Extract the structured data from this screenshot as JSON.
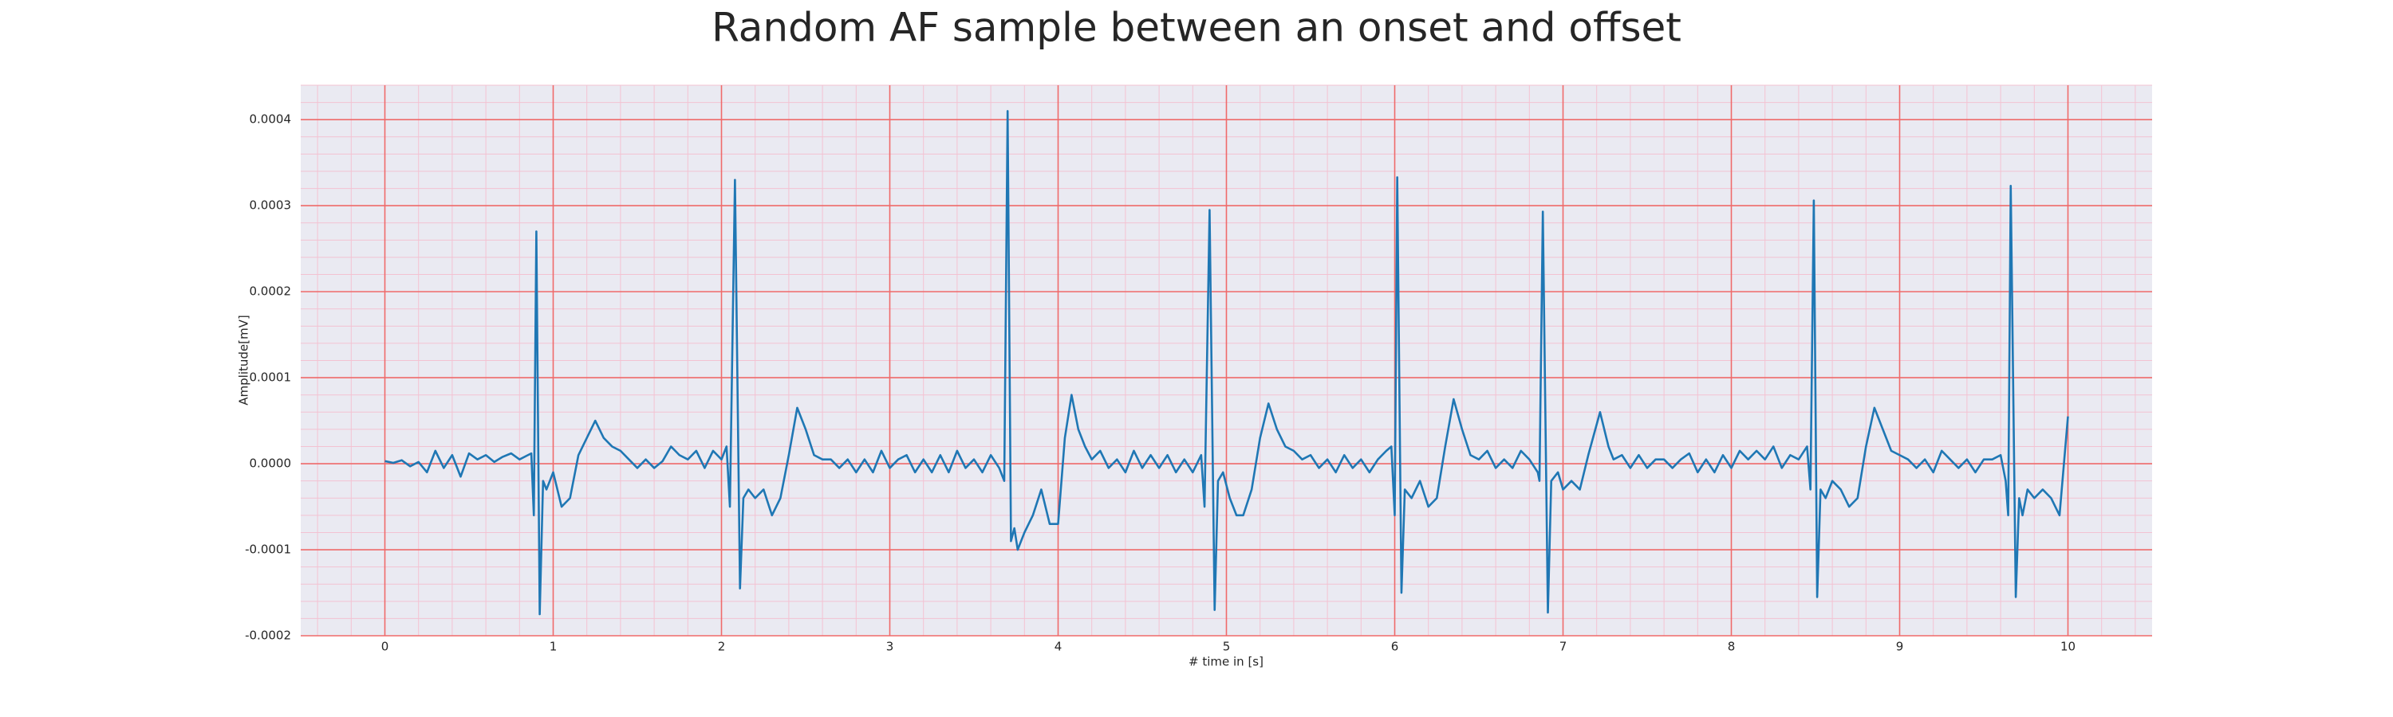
{
  "chart_data": {
    "type": "line",
    "title": "Random AF sample between an onset and offset",
    "xlabel": "# time in [s]",
    "ylabel": "Amplitude[mV]",
    "xlim": [
      -0.5,
      10.5
    ],
    "ylim": [
      -0.0002,
      0.00044
    ],
    "xticks": [
      0,
      1,
      2,
      3,
      4,
      5,
      6,
      7,
      8,
      9,
      10
    ],
    "yticks": [
      {
        "value": -0.0002,
        "label": "-0.0002"
      },
      {
        "value": -0.0001,
        "label": "-0.0001"
      },
      {
        "value": 0,
        "label": "0.0000"
      },
      {
        "value": 0.0001,
        "label": "0.0001"
      },
      {
        "value": 0.0002,
        "label": "0.0002"
      },
      {
        "value": 0.0003,
        "label": "0.0003"
      },
      {
        "value": 0.0004,
        "label": "0.0004"
      }
    ],
    "grid": true,
    "grid_color": "#ef6a6a",
    "minor_grid": true,
    "minor_divisions": 5,
    "minor_grid_color": "#f3c2d2",
    "background": "#eaeaf2",
    "series": [
      {
        "color": "#1f77b4",
        "x": [
          0,
          0.05,
          0.1,
          0.15,
          0.2,
          0.25,
          0.3,
          0.35,
          0.4,
          0.45,
          0.5,
          0.55,
          0.6,
          0.65,
          0.7,
          0.75,
          0.8,
          0.85,
          0.87,
          0.885,
          0.9,
          0.92,
          0.94,
          0.96,
          1.0,
          1.05,
          1.1,
          1.15,
          1.2,
          1.25,
          1.3,
          1.35,
          1.4,
          1.45,
          1.5,
          1.55,
          1.6,
          1.65,
          1.7,
          1.75,
          1.8,
          1.85,
          1.9,
          1.95,
          2.0,
          2.03,
          2.05,
          2.08,
          2.11,
          2.13,
          2.16,
          2.2,
          2.25,
          2.3,
          2.35,
          2.4,
          2.45,
          2.5,
          2.55,
          2.6,
          2.65,
          2.7,
          2.75,
          2.8,
          2.85,
          2.9,
          2.95,
          3.0,
          3.05,
          3.1,
          3.15,
          3.2,
          3.25,
          3.3,
          3.35,
          3.4,
          3.45,
          3.5,
          3.55,
          3.6,
          3.65,
          3.68,
          3.7,
          3.72,
          3.74,
          3.76,
          3.8,
          3.85,
          3.9,
          3.95,
          4.0,
          4.04,
          4.08,
          4.12,
          4.16,
          4.2,
          4.25,
          4.3,
          4.35,
          4.4,
          4.45,
          4.5,
          4.55,
          4.6,
          4.65,
          4.7,
          4.75,
          4.8,
          4.85,
          4.87,
          4.9,
          4.93,
          4.95,
          4.98,
          5.02,
          5.06,
          5.1,
          5.15,
          5.2,
          5.25,
          5.3,
          5.35,
          5.4,
          5.45,
          5.5,
          5.55,
          5.6,
          5.65,
          5.7,
          5.75,
          5.8,
          5.85,
          5.9,
          5.95,
          5.98,
          6.0,
          6.015,
          6.04,
          6.06,
          6.1,
          6.15,
          6.2,
          6.25,
          6.3,
          6.35,
          6.4,
          6.45,
          6.5,
          6.55,
          6.6,
          6.65,
          6.7,
          6.75,
          6.8,
          6.85,
          6.86,
          6.88,
          6.91,
          6.93,
          6.97,
          7.0,
          7.05,
          7.1,
          7.15,
          7.22,
          7.27,
          7.3,
          7.35,
          7.4,
          7.45,
          7.5,
          7.55,
          7.6,
          7.65,
          7.7,
          7.75,
          7.8,
          7.85,
          7.9,
          7.95,
          8.0,
          8.05,
          8.1,
          8.15,
          8.2,
          8.25,
          8.3,
          8.35,
          8.4,
          8.45,
          8.47,
          8.49,
          8.51,
          8.53,
          8.56,
          8.6,
          8.65,
          8.7,
          8.75,
          8.8,
          8.85,
          8.9,
          8.95,
          9.0,
          9.05,
          9.1,
          9.15,
          9.2,
          9.25,
          9.3,
          9.35,
          9.4,
          9.45,
          9.5,
          9.55,
          9.6,
          9.63,
          9.645,
          9.66,
          9.69,
          9.71,
          9.73,
          9.76,
          9.8,
          9.85,
          9.9,
          9.95,
          10.0
        ],
        "values": [
          3e-06,
          1e-06,
          4e-06,
          -3e-06,
          2e-06,
          -1e-05,
          1.5e-05,
          -5e-06,
          1e-05,
          -1.5e-05,
          1.2e-05,
          5e-06,
          1e-05,
          2e-06,
          8e-06,
          1.2e-05,
          5e-06,
          1e-05,
          1.2e-05,
          -6e-05,
          0.00027,
          -0.000175,
          -2e-05,
          -3e-05,
          -1e-05,
          -5e-05,
          -4e-05,
          1e-05,
          3e-05,
          5e-05,
          3e-05,
          2e-05,
          1.5e-05,
          5e-06,
          -5e-06,
          5e-06,
          -5e-06,
          3e-06,
          2e-05,
          1e-05,
          5e-06,
          1.5e-05,
          -5e-06,
          1.5e-05,
          5e-06,
          2e-05,
          -5e-05,
          0.00033,
          -0.000145,
          -4e-05,
          -3e-05,
          -4e-05,
          -3e-05,
          -6e-05,
          -4e-05,
          1e-05,
          6.5e-05,
          4e-05,
          1e-05,
          5e-06,
          5e-06,
          -5e-06,
          5e-06,
          -1e-05,
          5e-06,
          -1e-05,
          1.5e-05,
          -5e-06,
          5e-06,
          1e-05,
          -1e-05,
          5e-06,
          -1e-05,
          1e-05,
          -1e-05,
          1.5e-05,
          -5e-06,
          5e-06,
          -1e-05,
          1e-05,
          -5e-06,
          -2e-05,
          0.00041,
          -9e-05,
          -7.5e-05,
          -0.0001,
          -8e-05,
          -6e-05,
          -3e-05,
          -7e-05,
          -7e-05,
          3e-05,
          8e-05,
          4e-05,
          2e-05,
          5e-06,
          1.5e-05,
          -5e-06,
          5e-06,
          -1e-05,
          1.5e-05,
          -5e-06,
          1e-05,
          -5e-06,
          1e-05,
          -1e-05,
          5e-06,
          -1e-05,
          1e-05,
          -5e-05,
          0.000295,
          -0.00017,
          -2e-05,
          -1e-05,
          -4e-05,
          -6e-05,
          -6e-05,
          -3e-05,
          3e-05,
          7e-05,
          4e-05,
          2e-05,
          1.5e-05,
          5e-06,
          1e-05,
          -5e-06,
          5e-06,
          -1e-05,
          1e-05,
          -5e-06,
          5e-06,
          -1e-05,
          5e-06,
          1.5e-05,
          2e-05,
          -6e-05,
          0.000333,
          -0.00015,
          -3e-05,
          -4e-05,
          -2e-05,
          -5e-05,
          -4e-05,
          2e-05,
          7.5e-05,
          4e-05,
          1e-05,
          5e-06,
          1.5e-05,
          -5e-06,
          5e-06,
          -5e-06,
          1.5e-05,
          5e-06,
          -1e-05,
          -2e-05,
          0.000293,
          -0.000173,
          -2e-05,
          -1e-05,
          -3e-05,
          -2e-05,
          -3e-05,
          1e-05,
          6e-05,
          2e-05,
          5e-06,
          1e-05,
          -5e-06,
          1e-05,
          -5e-06,
          5e-06,
          5e-06,
          -5e-06,
          5e-06,
          1.2e-05,
          -1e-05,
          5e-06,
          -1e-05,
          1e-05,
          -5e-06,
          1.5e-05,
          5e-06,
          1.5e-05,
          5e-06,
          2e-05,
          -5e-06,
          1e-05,
          5e-06,
          2e-05,
          -3e-05,
          0.000306,
          -0.000155,
          -3e-05,
          -4e-05,
          -2e-05,
          -3e-05,
          -5e-05,
          -4e-05,
          2e-05,
          6.5e-05,
          4e-05,
          1.5e-05,
          1e-05,
          5e-06,
          -5e-06,
          5e-06,
          -1e-05,
          1.5e-05,
          5e-06,
          -5e-06,
          5e-06,
          -1e-05,
          5e-06,
          5e-06,
          1e-05,
          -2e-05,
          -6e-05,
          0.000323,
          -0.000155,
          -4e-05,
          -6e-05,
          -3e-05,
          -4e-05,
          -3e-05,
          -4e-05,
          -6e-05,
          5.5e-05
        ]
      }
    ]
  }
}
